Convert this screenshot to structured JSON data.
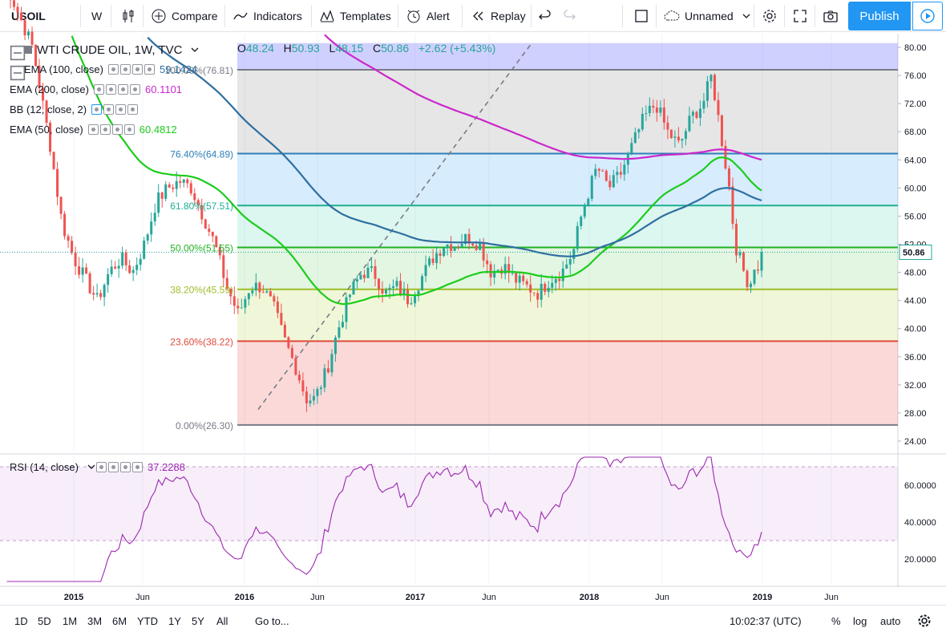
{
  "toolbar": {
    "symbol": "USOIL",
    "interval": "W",
    "compare": "Compare",
    "indicators": "Indicators",
    "templates": "Templates",
    "alert": "Alert",
    "replay": "Replay",
    "layout_name": "Unnamed",
    "publish": "Publish"
  },
  "legend": {
    "title": "WTI CRUDE OIL, 1W, TVC",
    "ohlc": {
      "o_label": "O",
      "o": "48.24",
      "h_label": "H",
      "h": "50.93",
      "l_label": "L",
      "l": "48.15",
      "c_label": "C",
      "c": "50.86",
      "change": "+2.62 (+5.43%)"
    },
    "studies": [
      {
        "name": "EMA (100, close)",
        "value": "59.1424",
        "color": "#2e6fa0"
      },
      {
        "name": "EMA (200, close)",
        "value": "60.1101",
        "color": "#cc27cc"
      },
      {
        "name": "BB (12, close, 2)",
        "value": "",
        "color": "#2196f3"
      },
      {
        "name": "EMA (50, close)",
        "value": "60.4812",
        "color": "#1ccc1c"
      }
    ],
    "rsi": {
      "name": "RSI (14, close)",
      "value": "37.2288"
    }
  },
  "fib_labels": [
    {
      "label": "100.00%(76.81)",
      "color": "#787b86"
    },
    {
      "label": "76.40%(64.89)",
      "color": "#2e7fb8"
    },
    {
      "label": "61.80%(57.51)",
      "color": "#1fae94"
    },
    {
      "label": "50.00%(51.55)",
      "color": "#22b322"
    },
    {
      "label": "38.20%(45.59)",
      "color": "#9dbd2a"
    },
    {
      "label": "23.60%(38.22)",
      "color": "#e04a3c"
    },
    {
      "label": "0.00%(26.30)",
      "color": "#787b86"
    }
  ],
  "price_axis": [
    "80.00",
    "76.00",
    "72.00",
    "68.00",
    "64.00",
    "60.00",
    "56.00",
    "52.00",
    "48.00",
    "44.00",
    "40.00",
    "36.00",
    "32.00",
    "28.00",
    "24.00"
  ],
  "last_price": "50.86",
  "rsi_axis": [
    "60.0000",
    "40.0000",
    "20.0000"
  ],
  "time_axis": [
    "2015",
    "Jun",
    "2016",
    "Jun",
    "2017",
    "Jun",
    "2018",
    "Jun",
    "2019",
    "Jun"
  ],
  "bottom": {
    "ranges": [
      "1D",
      "5D",
      "1M",
      "3M",
      "6M",
      "YTD",
      "1Y",
      "5Y",
      "All"
    ],
    "goto": "Go to...",
    "clock": "10:02:37 (UTC)",
    "percent": "%",
    "log": "log",
    "auto": "auto"
  },
  "colors": {
    "up": "#26a69a",
    "down": "#ef5350",
    "ema50": "#1ccc1c",
    "ema100": "#2e6fa0",
    "ema200": "#cc27cc",
    "rsi": "#9c27b0"
  }
}
